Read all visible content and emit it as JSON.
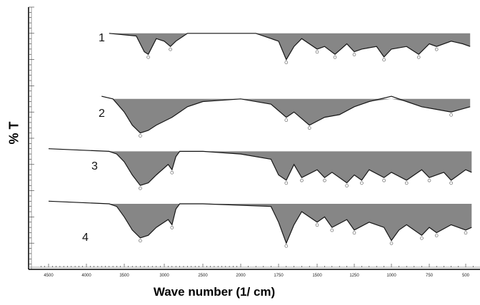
{
  "chart_data": {
    "type": "line",
    "title": "",
    "xlabel": "Wave number (1/ cm)",
    "ylabel": "% T",
    "xlim": [
      4500,
      450
    ],
    "x_ticks": [
      4500,
      4000,
      3500,
      3000,
      2500,
      2000,
      1750,
      1500,
      1250,
      1000,
      750,
      500
    ],
    "x_tick_labels": [
      "4500",
      "4000",
      "3500",
      "3000",
      "2500",
      "2000",
      "1750",
      "1500",
      "1250",
      "1000",
      "750",
      "500"
    ],
    "ylim": [
      0,
      100
    ],
    "x_reversed": true,
    "grid": false,
    "series": [
      {
        "name": "1",
        "baseline": 90,
        "depth": 12,
        "x": [
          3700,
          3350,
          3300,
          3250,
          3200,
          3100,
          3000,
          2920,
          2850,
          2700,
          1900,
          1750,
          1700,
          1650,
          1600,
          1500,
          1450,
          1380,
          1300,
          1250,
          1200,
          1100,
          1050,
          1000,
          900,
          820,
          750,
          700,
          600,
          520,
          470
        ],
        "y": [
          90,
          89,
          86,
          83,
          82,
          88,
          87,
          85,
          87,
          90,
          90,
          87,
          80,
          85,
          88,
          84,
          85,
          82,
          86,
          83,
          84,
          85,
          81,
          84,
          85,
          82,
          86,
          85,
          87,
          86,
          85
        ]
      },
      {
        "name": "2",
        "baseline": 65,
        "depth": 14,
        "x": [
          3800,
          3650,
          3500,
          3400,
          3300,
          3200,
          3100,
          2900,
          2700,
          2500,
          2000,
          1800,
          1700,
          1650,
          1550,
          1450,
          1350,
          1250,
          1150,
          1000,
          900,
          800,
          700,
          600,
          470
        ],
        "y": [
          66,
          65,
          60,
          55,
          52,
          53,
          55,
          58,
          62,
          64,
          65,
          63,
          58,
          60,
          55,
          58,
          59,
          62,
          64,
          66,
          64,
          62,
          61,
          60,
          62
        ]
      },
      {
        "name": "3",
        "baseline": 45,
        "depth": 14,
        "x": [
          4500,
          3700,
          3600,
          3500,
          3400,
          3300,
          3200,
          3100,
          2950,
          2900,
          2850,
          2800,
          2500,
          2000,
          1800,
          1750,
          1700,
          1650,
          1600,
          1500,
          1450,
          1400,
          1300,
          1250,
          1200,
          1150,
          1050,
          1000,
          900,
          800,
          750,
          650,
          600,
          500,
          460
        ],
        "y": [
          46,
          45,
          44,
          41,
          36,
          32,
          33,
          36,
          40,
          38,
          43,
          45,
          45,
          44,
          42,
          36,
          34,
          40,
          35,
          38,
          35,
          37,
          33,
          36,
          34,
          38,
          35,
          37,
          34,
          38,
          35,
          37,
          34,
          38,
          37
        ]
      },
      {
        "name": "4",
        "baseline": 25,
        "depth": 14,
        "x": [
          4500,
          3700,
          3600,
          3500,
          3400,
          3300,
          3200,
          3100,
          2950,
          2900,
          2850,
          2800,
          2500,
          1800,
          1750,
          1700,
          1650,
          1600,
          1500,
          1450,
          1400,
          1300,
          1250,
          1150,
          1050,
          1000,
          950,
          900,
          800,
          750,
          700,
          600,
          500,
          460
        ],
        "y": [
          26,
          25,
          24,
          20,
          15,
          12,
          13,
          16,
          19,
          17,
          23,
          25,
          25,
          24,
          18,
          10,
          17,
          22,
          18,
          20,
          16,
          19,
          15,
          18,
          16,
          11,
          15,
          17,
          13,
          16,
          14,
          17,
          15,
          16
        ]
      }
    ]
  }
}
